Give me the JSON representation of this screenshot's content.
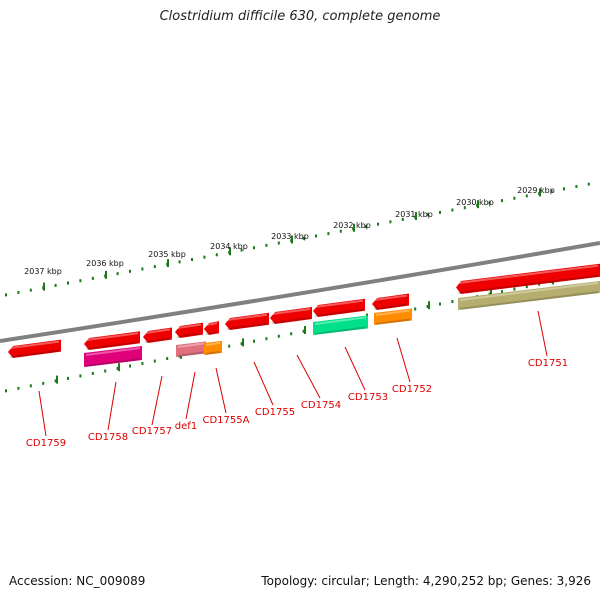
{
  "title": "Clostridium difficile 630, complete genome",
  "footer": {
    "accession": "Accession: NC_009089",
    "summary": "Topology: circular; Length: 4,290,252 bp; Genes: 3,926"
  },
  "colors": {
    "backbone": "#808080",
    "ruler": "#1a7a1a",
    "gene_red": "#ee0000",
    "magenta": "#e0007a",
    "pink": "#e07080",
    "orange": "#ff8c00",
    "green": "#00e08a",
    "olive": "#b5ae6e",
    "label": "#dd0000"
  },
  "ruler_labels": [
    "2037 kbp",
    "2036 kbp",
    "2035 kbp",
    "2034 kbp",
    "2033 kbp",
    "2032 kbp",
    "2031 kbp",
    "2030 kbp",
    "2029 kbp"
  ],
  "gene_labels": [
    "CD1759",
    "CD1758",
    "CD1757",
    "def1",
    "CD1755A",
    "CD1755",
    "CD1754",
    "CD1753",
    "CD1752",
    "CD1751"
  ]
}
